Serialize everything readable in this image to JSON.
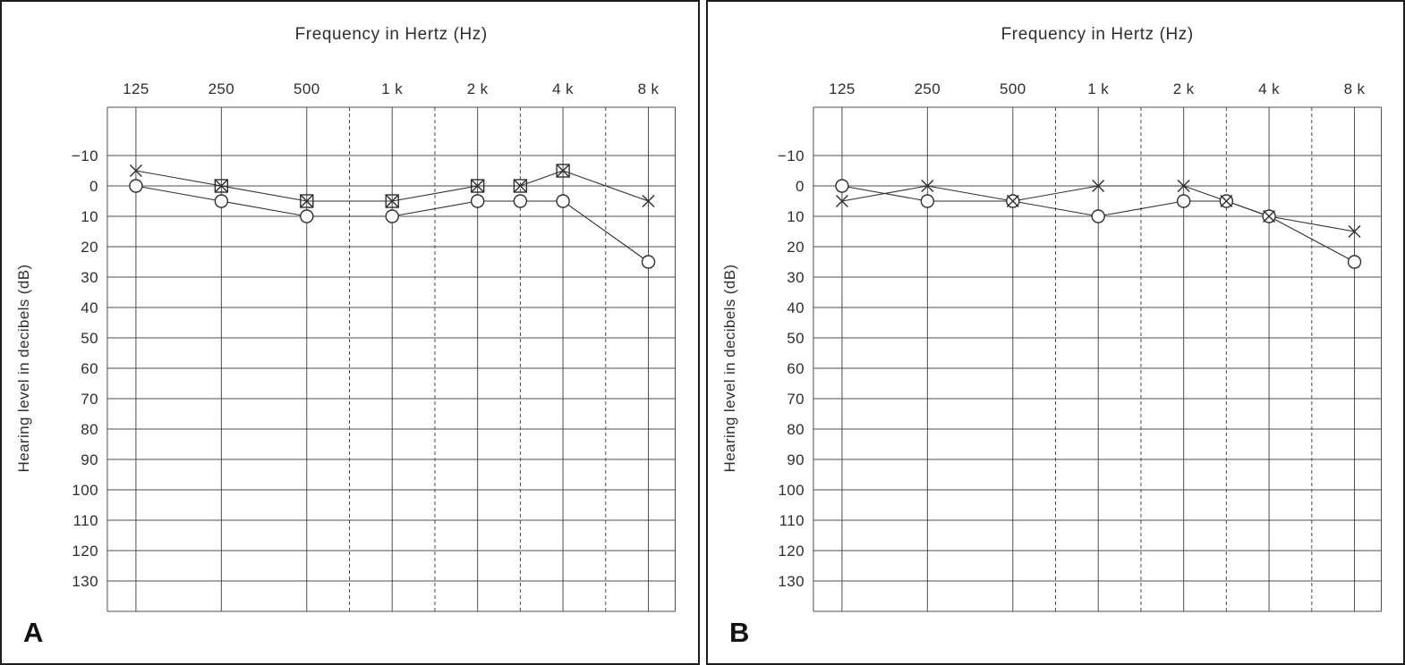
{
  "figure": {
    "description": "Two-panel audiogram figure",
    "colors": {
      "background": "#ffffff",
      "panel_border": "#1d1d1b",
      "grid_line": "#4d4d4d",
      "ink": "#2e2e2e"
    }
  },
  "chart_data": [
    {
      "type": "line",
      "panel_label": "A",
      "title": "Frequency in Hertz (Hz)",
      "ylabel": "Hearing level in decibels (dB)",
      "x_tick_labels": [
        "125",
        "250",
        "500",
        "1 k",
        "2 k",
        "4 k",
        "8 k"
      ],
      "x_tick_positions": [
        0,
        1,
        2,
        3,
        4,
        5,
        6
      ],
      "dashed_x_positions": [
        2.5,
        3.5,
        4.5,
        5.5
      ],
      "y_ticks": [
        -10,
        0,
        10,
        20,
        30,
        40,
        50,
        60,
        70,
        80,
        90,
        100,
        110,
        120,
        130
      ],
      "ylim": [
        -20,
        140
      ],
      "y_inverted": true,
      "grid": true,
      "legend": "none",
      "series": [
        {
          "name": "circle-marker-series",
          "marker": "circle",
          "connect": true,
          "points": [
            [
              0,
              0
            ],
            [
              1,
              5
            ],
            [
              2,
              10
            ],
            [
              3,
              10
            ],
            [
              4,
              5
            ],
            [
              4.5,
              5
            ],
            [
              5,
              5
            ],
            [
              6,
              25
            ]
          ]
        },
        {
          "name": "cross-marker-series",
          "marker": "cross",
          "connect": true,
          "points": [
            [
              0,
              -5
            ],
            [
              1,
              0
            ],
            [
              2,
              5
            ],
            [
              3,
              5
            ],
            [
              4,
              0
            ],
            [
              4.5,
              0
            ],
            [
              5,
              -5
            ],
            [
              6,
              5
            ]
          ]
        },
        {
          "name": "square-marker-series",
          "marker": "square",
          "connect": false,
          "points": [
            [
              1,
              0
            ],
            [
              2,
              5
            ],
            [
              3,
              5
            ],
            [
              4,
              0
            ],
            [
              4.5,
              0
            ],
            [
              5,
              -5
            ]
          ]
        }
      ]
    },
    {
      "type": "line",
      "panel_label": "B",
      "title": "Frequency in Hertz (Hz)",
      "ylabel": "Hearing level in decibels (dB)",
      "x_tick_labels": [
        "125",
        "250",
        "500",
        "1 k",
        "2 k",
        "4 k",
        "8 k"
      ],
      "x_tick_positions": [
        0,
        1,
        2,
        3,
        4,
        5,
        6
      ],
      "dashed_x_positions": [
        2.5,
        3.5,
        4.5,
        5.5
      ],
      "y_ticks": [
        -10,
        0,
        10,
        20,
        30,
        40,
        50,
        60,
        70,
        80,
        90,
        100,
        110,
        120,
        130
      ],
      "ylim": [
        -20,
        140
      ],
      "y_inverted": true,
      "grid": true,
      "legend": "none",
      "series": [
        {
          "name": "circle-marker-series",
          "marker": "circle",
          "connect": true,
          "points": [
            [
              0,
              0
            ],
            [
              1,
              5
            ],
            [
              2,
              5
            ],
            [
              3,
              10
            ],
            [
              4,
              5
            ],
            [
              4.5,
              5
            ],
            [
              5,
              10
            ],
            [
              6,
              25
            ]
          ]
        },
        {
          "name": "cross-marker-series",
          "marker": "cross",
          "connect": true,
          "points": [
            [
              0,
              5
            ],
            [
              1,
              0
            ],
            [
              2,
              5
            ],
            [
              3,
              0
            ],
            [
              4,
              0
            ],
            [
              4.5,
              5
            ],
            [
              5,
              10
            ],
            [
              6,
              15
            ]
          ]
        }
      ]
    }
  ]
}
